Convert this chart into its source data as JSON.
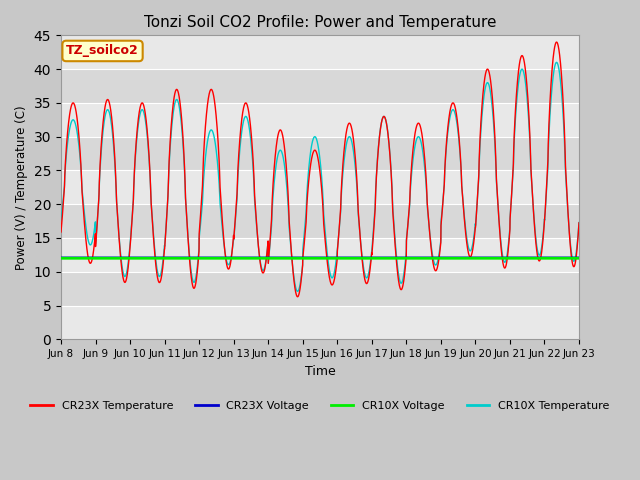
{
  "title": "Tonzi Soil CO2 Profile: Power and Temperature",
  "xlabel": "Time",
  "ylabel": "Power (V) / Temperature (C)",
  "ylim": [
    0,
    45
  ],
  "yticks": [
    0,
    5,
    10,
    15,
    20,
    25,
    30,
    35,
    40,
    45
  ],
  "annotation_text": "TZ_soilco2",
  "annotation_box_color": "#ffffcc",
  "annotation_box_edge": "#cc8800",
  "annotation_text_color": "#cc0000",
  "fig_bg_color": "#c8c8c8",
  "plot_bg_color": "#e8e8e8",
  "plot_bg_dark": "#d8d8d8",
  "cr23x_temp_color": "#ff0000",
  "cr23x_volt_color": "#0000cc",
  "cr10x_volt_color": "#00ee00",
  "cr10x_temp_color": "#00cccc",
  "legend_labels": [
    "CR23X Temperature",
    "CR23X Voltage",
    "CR10X Voltage",
    "CR10X Temperature"
  ],
  "xtick_labels": [
    "Jun 8",
    "Jun 9",
    "Jun 10",
    "Jun 11",
    "Jun 12",
    "Jun 13",
    "Jun 14",
    "Jun 15",
    "Jun 16",
    "Jun 17",
    "Jun 18",
    "Jun 19",
    "Jun 20",
    "Jun 21",
    "Jun 22",
    "Jun 23"
  ],
  "num_days": 15,
  "cr10x_volt_value": 12.0,
  "cr23x_volt_value": 12.1,
  "temp_min_cr23x": [
    10,
    7,
    7,
    6,
    9,
    8.5,
    5,
    7,
    7,
    6,
    9,
    11,
    9,
    10,
    9
  ],
  "temp_min_cr10x": [
    13,
    8,
    8,
    7,
    10,
    9,
    6,
    8,
    8,
    7,
    10,
    12,
    10,
    11,
    10
  ],
  "temp_max_cr23x": [
    35,
    35.5,
    35,
    37,
    37,
    35,
    31,
    28,
    32,
    33,
    32,
    35,
    40,
    42,
    44
  ],
  "temp_max_cr10x": [
    32.5,
    34,
    34,
    35.5,
    31,
    33,
    28,
    30,
    30,
    33,
    30,
    34,
    38,
    40,
    41
  ]
}
